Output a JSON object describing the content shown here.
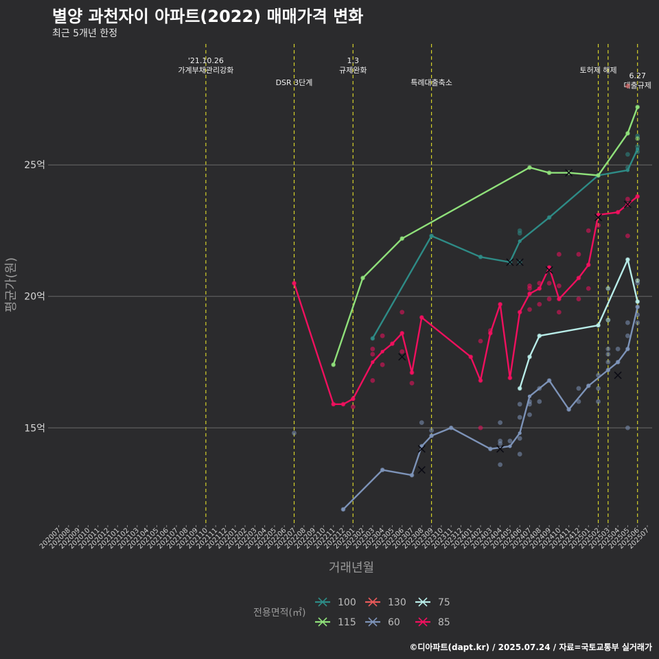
{
  "header": {
    "title": "별양 과천자이 아파트(2022) 매매가격 변화",
    "subtitle": "최근 5개년 한정"
  },
  "caption": "©디아파트(dapt.kr) / 2025.07.24 / 자료=국토교통부 실거래가",
  "colors": {
    "background": "#2b2b2d",
    "grid": "#6a6a6a",
    "event_line": "#d6d22a",
    "s100": "#2e8b86",
    "s115": "#8fe07a",
    "s130": "#e85a5a",
    "s60": "#7d93b8",
    "s75": "#b8ece8",
    "s85": "#f0105e"
  },
  "chart_data": {
    "type": "line",
    "title": "별양 과천자이 아파트(2022) 매매가격 변화",
    "subtitle": "최근 5개년 한정",
    "xlabel": "거래년월",
    "ylabel": "평균가(원)",
    "x": [
      "202007",
      "202008",
      "202009",
      "202010",
      "202011",
      "202012",
      "202101",
      "202102",
      "202103",
      "202104",
      "202105",
      "202106",
      "202107",
      "202108",
      "202109",
      "202110",
      "202111",
      "202112",
      "202201",
      "202202",
      "202203",
      "202204",
      "202205",
      "202206",
      "202207",
      "202208",
      "202209",
      "202210",
      "202211",
      "202212",
      "202301",
      "202302",
      "202303",
      "202304",
      "202305",
      "202306",
      "202307",
      "202308",
      "202309",
      "202310",
      "202311",
      "202312",
      "202401",
      "202402",
      "202403",
      "202404",
      "202405",
      "202406",
      "202407",
      "202408",
      "202409",
      "202410",
      "202411",
      "202412",
      "202501",
      "202502",
      "202503",
      "202504",
      "202505",
      "202506",
      "202507"
    ],
    "y_ticks": [
      {
        "value": 15,
        "label": "15억"
      },
      {
        "value": 20,
        "label": "20억"
      },
      {
        "value": 25,
        "label": "25억"
      }
    ],
    "ylim": [
      11.3,
      29.6
    ],
    "grid": "horizontal",
    "legend": {
      "title": "전용면적(㎡)",
      "position": "bottom",
      "entries": [
        "100",
        "115",
        "130",
        "60",
        "75",
        "85"
      ]
    },
    "events": [
      {
        "x": 15,
        "label_lines": [
          "'21.10.26",
          "가계부채관리강화"
        ],
        "level": 0
      },
      {
        "x": 24,
        "label_lines": [
          "DSR 3단계"
        ],
        "level": 2
      },
      {
        "x": 30,
        "label_lines": [
          "1.3",
          "규제완화"
        ],
        "level": 0
      },
      {
        "x": 38,
        "label_lines": [
          "특례대출축소"
        ],
        "level": 2
      },
      {
        "x": 55,
        "label_lines": [
          "토허제 해제"
        ],
        "level": 1
      },
      {
        "x": 56,
        "label_lines": [],
        "level": 1
      },
      {
        "x": 59,
        "label_lines": [
          "6.27",
          "대출규제"
        ],
        "level": 3
      }
    ],
    "series": [
      {
        "name": "100",
        "color": "#2e8b86",
        "line": [
          [
            32,
            18.4
          ],
          [
            38,
            22.3
          ],
          [
            43,
            21.5
          ],
          [
            46,
            21.3
          ],
          [
            47,
            22.1
          ],
          [
            50,
            23.0
          ],
          [
            55,
            24.6
          ],
          [
            58,
            24.8
          ],
          [
            59,
            25.6
          ]
        ],
        "cancels": [
          [
            46,
            21.3
          ],
          [
            47,
            21.3
          ]
        ],
        "points": [
          [
            32,
            18.4
          ],
          [
            38,
            22.3
          ],
          [
            43,
            21.5
          ],
          [
            46,
            21.3
          ],
          [
            47,
            21.3
          ],
          [
            47,
            22.4
          ],
          [
            47,
            22.5
          ],
          [
            50,
            23.0
          ],
          [
            55,
            24.6
          ],
          [
            58,
            24.9
          ],
          [
            58,
            25.4
          ],
          [
            59,
            25.5
          ],
          [
            59,
            25.7
          ],
          [
            59,
            26.1
          ]
        ]
      },
      {
        "name": "115",
        "color": "#8fe07a",
        "line": [
          [
            28,
            17.4
          ],
          [
            31,
            20.7
          ],
          [
            35,
            22.2
          ],
          [
            48,
            24.9
          ],
          [
            50,
            24.7
          ],
          [
            52,
            24.7
          ],
          [
            55,
            24.6
          ],
          [
            58,
            26.2
          ],
          [
            59,
            27.2
          ]
        ],
        "cancels": [
          [
            52,
            24.7
          ]
        ],
        "points": [
          [
            28,
            17.4
          ],
          [
            31,
            20.7
          ],
          [
            35,
            22.2
          ],
          [
            48,
            24.9
          ],
          [
            50,
            24.7
          ],
          [
            52,
            24.7
          ],
          [
            55,
            24.6
          ],
          [
            58,
            26.2
          ],
          [
            59,
            27.2
          ],
          [
            59,
            26.0
          ]
        ]
      },
      {
        "name": "130",
        "color": "#e85a5a",
        "line": [],
        "cancels": [],
        "points": [
          [
            58,
            28.0
          ]
        ]
      },
      {
        "name": "60",
        "color": "#7d93b8",
        "line": [
          [
            29,
            11.9
          ],
          [
            33,
            13.4
          ],
          [
            36,
            13.2
          ],
          [
            37,
            14.3
          ],
          [
            38,
            14.7
          ],
          [
            40,
            15.0
          ],
          [
            44,
            14.2
          ],
          [
            46,
            14.3
          ],
          [
            47,
            14.8
          ],
          [
            48,
            16.2
          ],
          [
            50,
            16.8
          ],
          [
            52,
            15.7
          ],
          [
            54,
            16.6
          ],
          [
            56,
            17.2
          ],
          [
            57,
            17.5
          ],
          [
            58,
            18.0
          ],
          [
            59,
            19.6
          ]
        ],
        "cancels": [
          [
            37,
            14.2
          ],
          [
            37,
            13.4
          ],
          [
            45,
            14.2
          ],
          [
            57,
            17.0
          ]
        ],
        "points": [
          [
            24,
            14.8
          ],
          [
            29,
            11.9
          ],
          [
            33,
            13.4
          ],
          [
            36,
            13.2
          ],
          [
            37,
            14.3
          ],
          [
            37,
            15.2
          ],
          [
            38,
            14.9
          ],
          [
            38,
            14.7
          ],
          [
            40,
            15.0
          ],
          [
            44,
            14.2
          ],
          [
            45,
            14.4
          ],
          [
            45,
            14.5
          ],
          [
            45,
            13.6
          ],
          [
            45,
            15.2
          ],
          [
            46,
            14.5
          ],
          [
            47,
            14.0
          ],
          [
            47,
            14.6
          ],
          [
            47,
            15.4
          ],
          [
            47,
            15.9
          ],
          [
            48,
            15.5
          ],
          [
            48,
            15.9
          ],
          [
            48,
            16.0
          ],
          [
            49,
            16.0
          ],
          [
            49,
            16.5
          ],
          [
            50,
            16.8
          ],
          [
            52,
            15.7
          ],
          [
            53,
            16.0
          ],
          [
            53,
            16.5
          ],
          [
            54,
            16.6
          ],
          [
            55,
            16.0
          ],
          [
            55,
            16.5
          ],
          [
            55,
            17.0
          ],
          [
            56,
            17.2
          ],
          [
            56,
            17.5
          ],
          [
            56,
            17.8
          ],
          [
            56,
            18.0
          ],
          [
            57,
            17.5
          ],
          [
            57,
            18.0
          ],
          [
            58,
            18.0
          ],
          [
            58,
            18.5
          ],
          [
            58,
            19.0
          ],
          [
            58,
            15.0
          ],
          [
            59,
            19.0
          ],
          [
            59,
            19.3
          ],
          [
            59,
            19.6
          ],
          [
            59,
            20.5
          ]
        ]
      },
      {
        "name": "75",
        "color": "#b8ece8",
        "line": [
          [
            47,
            16.5
          ],
          [
            48,
            17.7
          ],
          [
            49,
            18.5
          ],
          [
            55,
            18.9
          ],
          [
            58,
            21.4
          ],
          [
            59,
            19.8
          ]
        ],
        "cancels": [],
        "points": [
          [
            47,
            16.5
          ],
          [
            48,
            17.7
          ],
          [
            49,
            18.5
          ],
          [
            55,
            18.9
          ],
          [
            56,
            20.3
          ],
          [
            56,
            19.1
          ],
          [
            58,
            21.4
          ],
          [
            59,
            19.8
          ],
          [
            59,
            20.6
          ]
        ]
      },
      {
        "name": "85",
        "color": "#f0105e",
        "line": [
          [
            24,
            20.5
          ],
          [
            28,
            15.9
          ],
          [
            29,
            15.9
          ],
          [
            30,
            16.1
          ],
          [
            32,
            17.5
          ],
          [
            33,
            17.9
          ],
          [
            34,
            18.2
          ],
          [
            35,
            18.6
          ],
          [
            36,
            17.1
          ],
          [
            37,
            19.2
          ],
          [
            42,
            17.7
          ],
          [
            43,
            16.8
          ],
          [
            44,
            18.6
          ],
          [
            45,
            19.7
          ],
          [
            46,
            16.9
          ],
          [
            47,
            19.4
          ],
          [
            48,
            20.1
          ],
          [
            49,
            20.3
          ],
          [
            50,
            21.1
          ],
          [
            51,
            19.9
          ],
          [
            53,
            20.7
          ],
          [
            54,
            21.2
          ],
          [
            55,
            23.1
          ],
          [
            57,
            23.2
          ],
          [
            58,
            23.5
          ],
          [
            59,
            23.8
          ]
        ],
        "cancels": [
          [
            35,
            17.7
          ],
          [
            50,
            21.0
          ],
          [
            55,
            23.0
          ],
          [
            58,
            23.5
          ]
        ],
        "points": [
          [
            24,
            20.5
          ],
          [
            28,
            15.9
          ],
          [
            29,
            15.9
          ],
          [
            30,
            16.1
          ],
          [
            30,
            15.8
          ],
          [
            32,
            16.8
          ],
          [
            32,
            17.8
          ],
          [
            32,
            18.0
          ],
          [
            33,
            18.5
          ],
          [
            33,
            17.4
          ],
          [
            34,
            18.2
          ],
          [
            35,
            18.6
          ],
          [
            35,
            19.4
          ],
          [
            35,
            17.9
          ],
          [
            36,
            17.1
          ],
          [
            36,
            16.7
          ],
          [
            37,
            19.2
          ],
          [
            42,
            17.7
          ],
          [
            43,
            16.8
          ],
          [
            43,
            18.3
          ],
          [
            43,
            15.0
          ],
          [
            44,
            18.6
          ],
          [
            44,
            18.7
          ],
          [
            45,
            19.7
          ],
          [
            46,
            16.9
          ],
          [
            47,
            19.4
          ],
          [
            48,
            20.1
          ],
          [
            48,
            20.4
          ],
          [
            48,
            20.3
          ],
          [
            48,
            19.5
          ],
          [
            49,
            20.3
          ],
          [
            49,
            19.7
          ],
          [
            49,
            20.5
          ],
          [
            50,
            21.1
          ],
          [
            50,
            20.5
          ],
          [
            50,
            19.9
          ],
          [
            51,
            19.9
          ],
          [
            51,
            21.6
          ],
          [
            51,
            20.4
          ],
          [
            51,
            19.4
          ],
          [
            53,
            20.7
          ],
          [
            53,
            19.9
          ],
          [
            53,
            21.6
          ],
          [
            54,
            21.2
          ],
          [
            54,
            20.3
          ],
          [
            54,
            22.5
          ],
          [
            55,
            23.1
          ],
          [
            55,
            22.7
          ],
          [
            57,
            23.2
          ],
          [
            58,
            23.5
          ],
          [
            58,
            23.7
          ],
          [
            58,
            22.3
          ],
          [
            59,
            23.8
          ]
        ]
      }
    ]
  }
}
